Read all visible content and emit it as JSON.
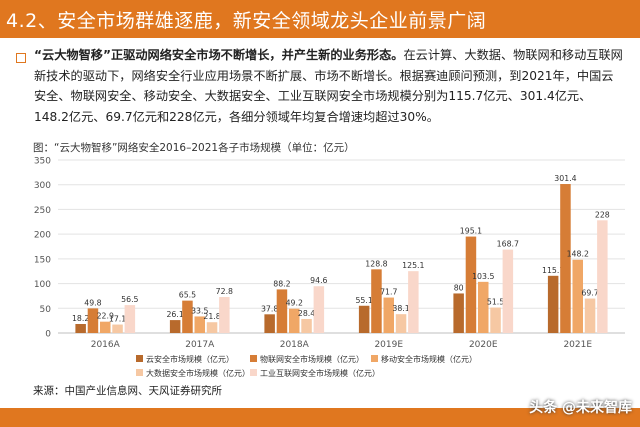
{
  "header": {
    "title": "4.2、安全市场群雄逐鹿，新安全领域龙头企业前景广阔"
  },
  "intro": {
    "bold": "“云大物智移”正驱动网络安全市场不断增长，并产生新的业务形态。",
    "rest": "在云计算、大数据、物联网和移动互联网新技术的驱动下，网络安全行业应用场景不断扩展、市场不断增长。根据赛迪顾问预测，到2021年，中国云安全、物联网安全、移动安全、大数据安全、工业互联网安全市场规模分别为115.7亿元、301.4亿元、148.2亿元、69.7亿元和228亿元，各细分领域年均复合增速均超过30%。"
  },
  "figure": {
    "caption": "图：“云大物智移”网络安全2016–2021各子市场规模（单位：亿元）"
  },
  "source": "来源：中国产业信息网、天风证券研究所",
  "watermark": "头条 @未来智库",
  "colors": {
    "accent": "#e0771f"
  },
  "chart_data": {
    "type": "bar",
    "categories": [
      "2016A",
      "2017A",
      "2018A",
      "2019E",
      "2020E",
      "2021E"
    ],
    "series": [
      {
        "name": "云安全市场规模（亿元）",
        "color": "#b86a2c",
        "values": [
          18.2,
          26.1,
          37.8,
          55.1,
          80,
          115.7
        ]
      },
      {
        "name": "物联网安全市场规模（亿元）",
        "color": "#d67d36",
        "values": [
          49.8,
          65.5,
          88.2,
          128.8,
          195.1,
          301.4
        ]
      },
      {
        "name": "移动安全市场规模（亿元）",
        "color": "#f0a766",
        "values": [
          22.9,
          33.5,
          49.2,
          71.7,
          103.5,
          148.2
        ]
      },
      {
        "name": "大数据安全市场规模（亿元）",
        "color": "#f6c8a3",
        "values": [
          17.1,
          21.8,
          28.4,
          38.1,
          51.5,
          69.7
        ]
      },
      {
        "name": "工业互联网安全市场规模（亿元）",
        "color": "#f9d7ca",
        "values": [
          56.5,
          72.8,
          94.6,
          125.1,
          168.7,
          228
        ]
      }
    ],
    "ylim": [
      0,
      350
    ],
    "yticks": [
      0,
      50,
      100,
      150,
      200,
      250,
      300,
      350
    ],
    "grid": true,
    "legend_position": "bottom"
  }
}
